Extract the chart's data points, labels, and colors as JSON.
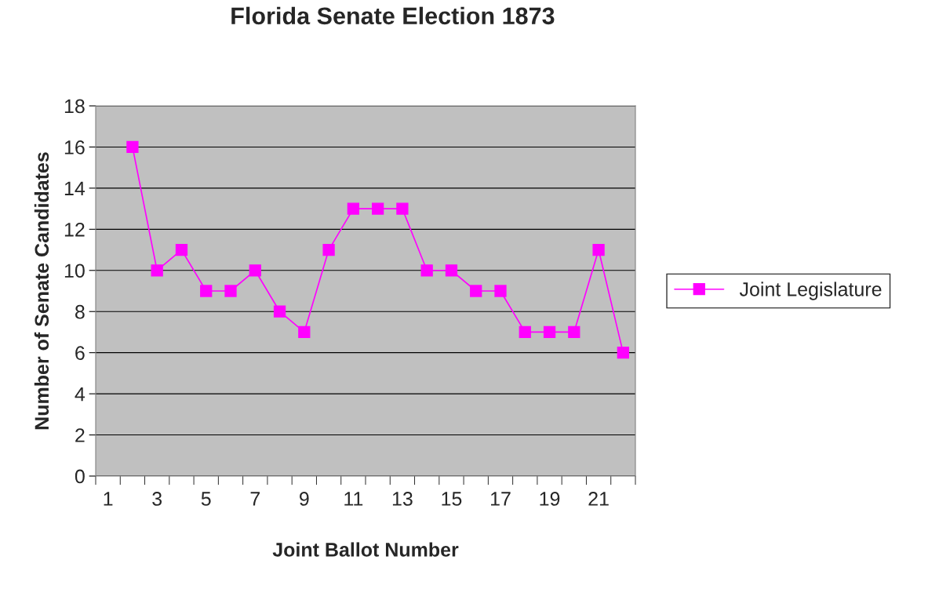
{
  "chart_data": {
    "type": "line",
    "title": "Florida Senate Election 1873",
    "xlabel": "Joint Ballot Number",
    "ylabel": "Number of Senate Candidates",
    "categories": [
      "1",
      null,
      "3",
      null,
      "5",
      null,
      "7",
      null,
      "9",
      null,
      "11",
      null,
      "13",
      null,
      "15",
      null,
      "17",
      null,
      "19",
      null,
      "21",
      null
    ],
    "series": [
      {
        "name": "Joint Legislature",
        "color": "#ff00ff",
        "values": [
          null,
          16,
          10,
          11,
          9,
          9,
          10,
          8,
          7,
          11,
          13,
          13,
          13,
          10,
          10,
          9,
          9,
          7,
          7,
          7,
          11,
          6
        ]
      }
    ],
    "ylim": [
      0,
      18
    ],
    "yticks": [
      0,
      2,
      4,
      6,
      8,
      10,
      12,
      14,
      16,
      18
    ],
    "grid": "y",
    "legend": "right",
    "marker": "square",
    "line_style": "solid"
  }
}
